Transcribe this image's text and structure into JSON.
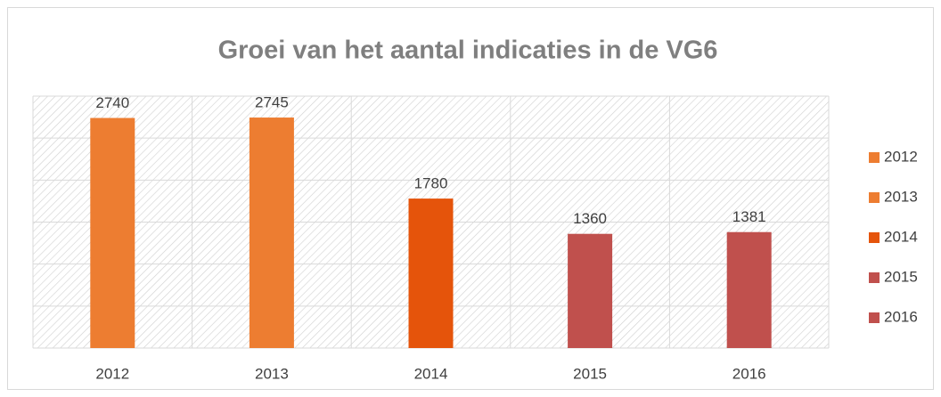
{
  "chart_data": {
    "type": "bar",
    "title": "Groei van het aantal indicaties in de VG6",
    "categories": [
      "2012",
      "2013",
      "2014",
      "2015",
      "2016"
    ],
    "values": [
      2740,
      2745,
      1780,
      1360,
      1381
    ],
    "colors": [
      "#ED7D31",
      "#ED7D31",
      "#E5540B",
      "#C0504D",
      "#C0504D"
    ],
    "ylim": [
      0,
      3000
    ],
    "yticks": [
      0,
      500,
      1000,
      1500,
      2000,
      2500,
      3000
    ],
    "grid": true,
    "legend": "right"
  }
}
